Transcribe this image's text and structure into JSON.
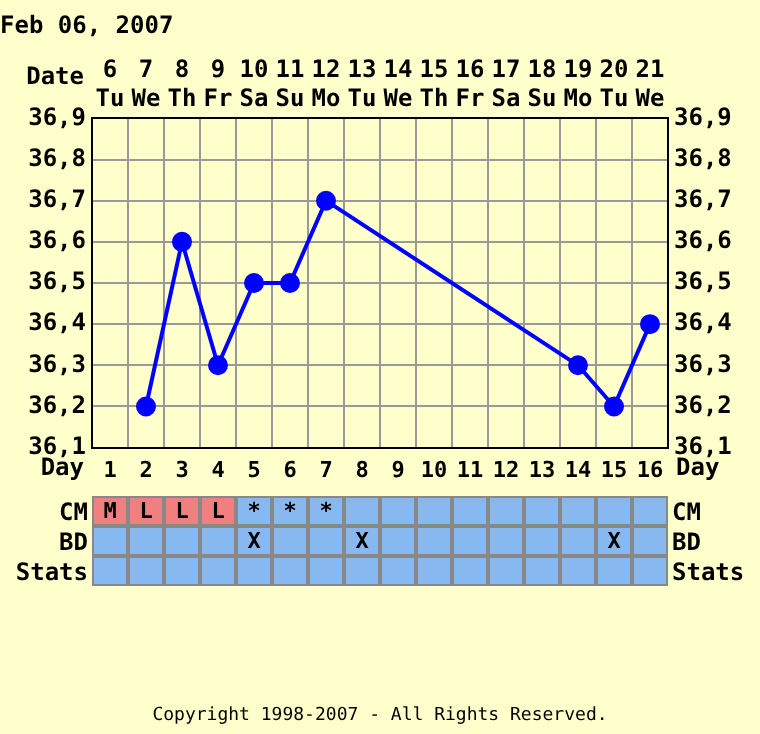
{
  "chart_data": [
    {
      "type": "line",
      "title": "Feb 06, 2007",
      "xlabel": "Date",
      "categories": [
        "6 Tu",
        "7 We",
        "8 Th",
        "9 Fr",
        "10 Sa",
        "11 Su",
        "12 Mo",
        "13 Tu",
        "14 We",
        "15 Th",
        "16 Fr",
        "17 Sa",
        "18 Su",
        "19 Mo",
        "20 Tu",
        "21 We"
      ],
      "series": [
        {
          "color": "#0000ff",
          "values": [
            null,
            36.2,
            36.6,
            36.3,
            36.5,
            36.5,
            36.7,
            null,
            null,
            null,
            null,
            null,
            null,
            36.3,
            36.2,
            36.4
          ]
        }
      ],
      "ylim": [
        36.1,
        36.9
      ],
      "yticks": [
        {
          "value": 36.1,
          "label": "36,1"
        },
        {
          "value": 36.2,
          "label": "36,2"
        },
        {
          "value": 36.3,
          "label": "36,3"
        },
        {
          "value": 36.4,
          "label": "36,4"
        },
        {
          "value": 36.5,
          "label": "36,5"
        },
        {
          "value": 36.6,
          "label": "36,6"
        },
        {
          "value": 36.7,
          "label": "36,7"
        },
        {
          "value": 36.8,
          "label": "36,8"
        },
        {
          "value": 36.9,
          "label": "36,9"
        }
      ],
      "y2lim": [
        36.1,
        36.9
      ],
      "y2ticks": [
        {
          "value": 36.1,
          "label": "36,1"
        },
        {
          "value": 36.2,
          "label": "36,2"
        },
        {
          "value": 36.3,
          "label": "36,3"
        },
        {
          "value": 36.4,
          "label": "36,4"
        },
        {
          "value": 36.5,
          "label": "36,5"
        },
        {
          "value": 36.6,
          "label": "36,6"
        },
        {
          "value": 36.7,
          "label": "36,7"
        },
        {
          "value": 36.8,
          "label": "36,8"
        },
        {
          "value": 36.9,
          "label": "36,9"
        }
      ],
      "grid": true,
      "marker": "circle",
      "line_style": "solid",
      "x2label": "Day",
      "x2lim": [
        0.5,
        16.5
      ],
      "x2ticks": [
        1,
        2,
        3,
        4,
        5,
        6,
        7,
        8,
        9,
        10,
        11,
        12,
        13,
        14,
        15,
        16
      ],
      "annotations": [
        "Copyright 1998-2007 - All Rights Reserved."
      ]
    },
    {
      "type": "other",
      "y_categories": [
        "CM",
        "BD",
        "Stats"
      ],
      "y2_categories": [
        "CM",
        "BD",
        "Stats"
      ],
      "cell_labels": [
        [
          "M",
          "L",
          "L",
          "L",
          "*",
          "*",
          "*",
          null,
          null,
          null,
          null,
          null,
          null,
          null,
          null,
          null
        ],
        [
          null,
          null,
          null,
          null,
          "X",
          null,
          null,
          "X",
          null,
          null,
          null,
          null,
          null,
          null,
          "X",
          null
        ],
        [
          null,
          null,
          null,
          null,
          null,
          null,
          null,
          null,
          null,
          null,
          null,
          null,
          null,
          null,
          null,
          null
        ]
      ],
      "colors": [
        [
          "#f08080",
          "#f08080",
          "#f08080",
          "#f08080",
          "#88b8f0",
          "#88b8f0",
          "#88b8f0",
          "#88b8f0",
          "#88b8f0",
          "#88b8f0",
          "#88b8f0",
          "#88b8f0",
          "#88b8f0",
          "#88b8f0",
          "#88b8f0",
          "#88b8f0"
        ],
        [
          "#88b8f0",
          "#88b8f0",
          "#88b8f0",
          "#88b8f0",
          "#88b8f0",
          "#88b8f0",
          "#88b8f0",
          "#88b8f0",
          "#88b8f0",
          "#88b8f0",
          "#88b8f0",
          "#88b8f0",
          "#88b8f0",
          "#88b8f0",
          "#88b8f0",
          "#88b8f0"
        ],
        [
          "#88b8f0",
          "#88b8f0",
          "#88b8f0",
          "#88b8f0",
          "#88b8f0",
          "#88b8f0",
          "#88b8f0",
          "#88b8f0",
          "#88b8f0",
          "#88b8f0",
          "#88b8f0",
          "#88b8f0",
          "#88b8f0",
          "#88b8f0",
          "#88b8f0",
          "#88b8f0"
        ]
      ]
    }
  ]
}
